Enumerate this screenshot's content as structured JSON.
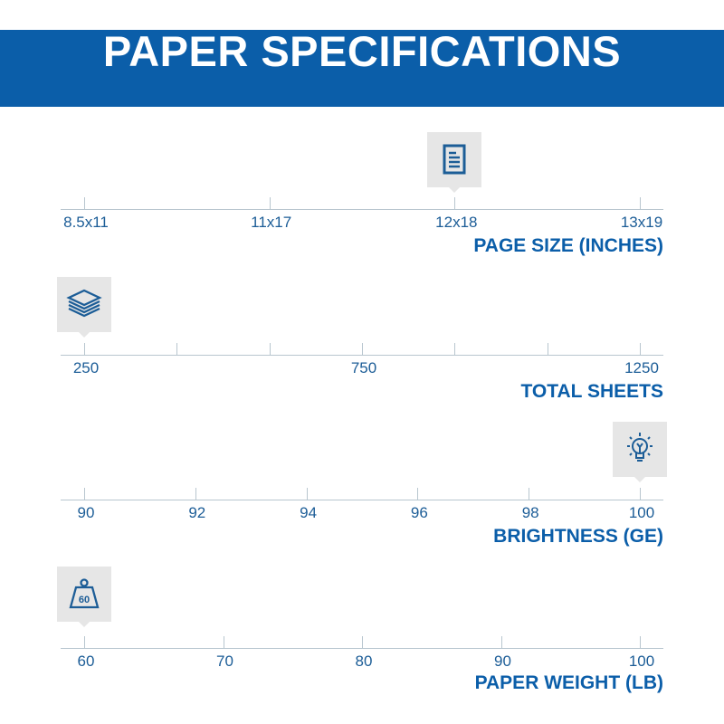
{
  "title": "PAPER SPECIFICATIONS",
  "accent_color": "#0b5ea9",
  "scales": [
    {
      "name": "page-size",
      "title": "PAGE SIZE (INCHES)",
      "ticks": [
        "8.5x11",
        "11x17",
        "12x18",
        "13x19"
      ],
      "selected": "12x18",
      "icon": "document-icon"
    },
    {
      "name": "total-sheets",
      "title": "TOTAL SHEETS",
      "ticks": [
        "250",
        "",
        "",
        "750",
        "",
        "",
        "1250"
      ],
      "selected": "250",
      "icon": "paper-stack-icon"
    },
    {
      "name": "brightness",
      "title": "BRIGHTNESS (GE)",
      "ticks": [
        "90",
        "92",
        "94",
        "96",
        "98",
        "100"
      ],
      "selected": "100",
      "icon": "lightbulb-icon"
    },
    {
      "name": "paper-weight",
      "title": "PAPER WEIGHT (LB)",
      "ticks": [
        "60",
        "70",
        "80",
        "90",
        "100"
      ],
      "selected": "60",
      "icon": "weight-icon",
      "icon_text": "60"
    }
  ]
}
